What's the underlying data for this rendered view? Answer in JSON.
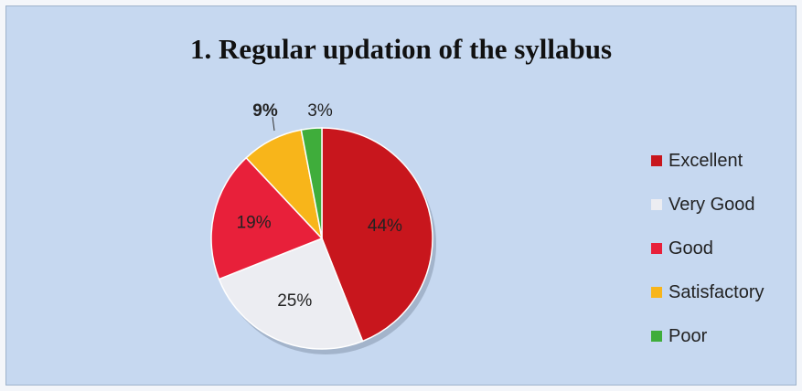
{
  "chart_data": {
    "type": "pie",
    "title": "1. Regular updation of the syllabus",
    "categories": [
      "Excellent",
      "Very Good",
      "Good",
      "Satisfactory",
      "Poor"
    ],
    "values": [
      44,
      25,
      19,
      9,
      3
    ],
    "labels": [
      "44%",
      "25%",
      "19%",
      "9%",
      "3%"
    ],
    "colors": [
      "#c8161d",
      "#ecedf2",
      "#e8203a",
      "#f8b51a",
      "#3fad3b"
    ],
    "legend": "right",
    "start_angle_deg": 0,
    "direction": "clockwise"
  }
}
